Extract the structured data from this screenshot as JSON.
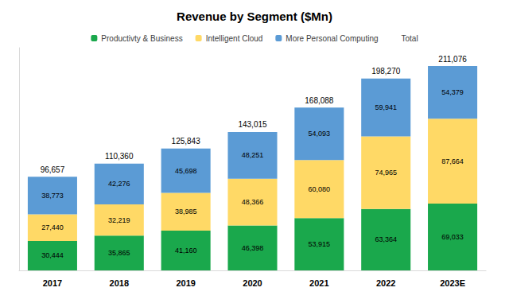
{
  "chart_data": {
    "type": "bar",
    "title": "Revenue by Segment ($Mn)",
    "categories": [
      "2017",
      "2018",
      "2019",
      "2020",
      "2021",
      "2022",
      "2023E"
    ],
    "stacked": true,
    "data_labels": true,
    "grid": false,
    "legend": "top",
    "tick_labels": "x",
    "ylim": [
      0,
      230000
    ],
    "series": [
      {
        "name": "Productivty & Business",
        "color": "#1aa84c",
        "values": [
          30444,
          35865,
          41160,
          46398,
          53915,
          63364,
          69033
        ],
        "value_labels": [
          "30,444",
          "35,865",
          "41,160",
          "46,398",
          "53,915",
          "63,364",
          "69,033"
        ]
      },
      {
        "name": "Intelligent Cloud",
        "color": "#ffd966",
        "values": [
          27440,
          32219,
          38985,
          48366,
          60080,
          74965,
          87664
        ],
        "value_labels": [
          "27,440",
          "32,219",
          "38,985",
          "48,366",
          "60,080",
          "74,965",
          "87,664"
        ]
      },
      {
        "name": "More Personal Computing",
        "color": "#5b9bd5",
        "values": [
          38773,
          42276,
          45698,
          48251,
          54093,
          59941,
          54379
        ],
        "value_labels": [
          "38,773",
          "42,276",
          "45,698",
          "48,251",
          "54,093",
          "59,941",
          "54,379"
        ]
      },
      {
        "name": "Total",
        "type": "line",
        "line_style": "none",
        "values": [
          96657,
          110360,
          125843,
          143015,
          168088,
          198270,
          211076
        ],
        "value_labels": [
          "96,657",
          "110,360",
          "125,843",
          "143,015",
          "168,088",
          "198,270",
          "211,076"
        ]
      }
    ]
  }
}
